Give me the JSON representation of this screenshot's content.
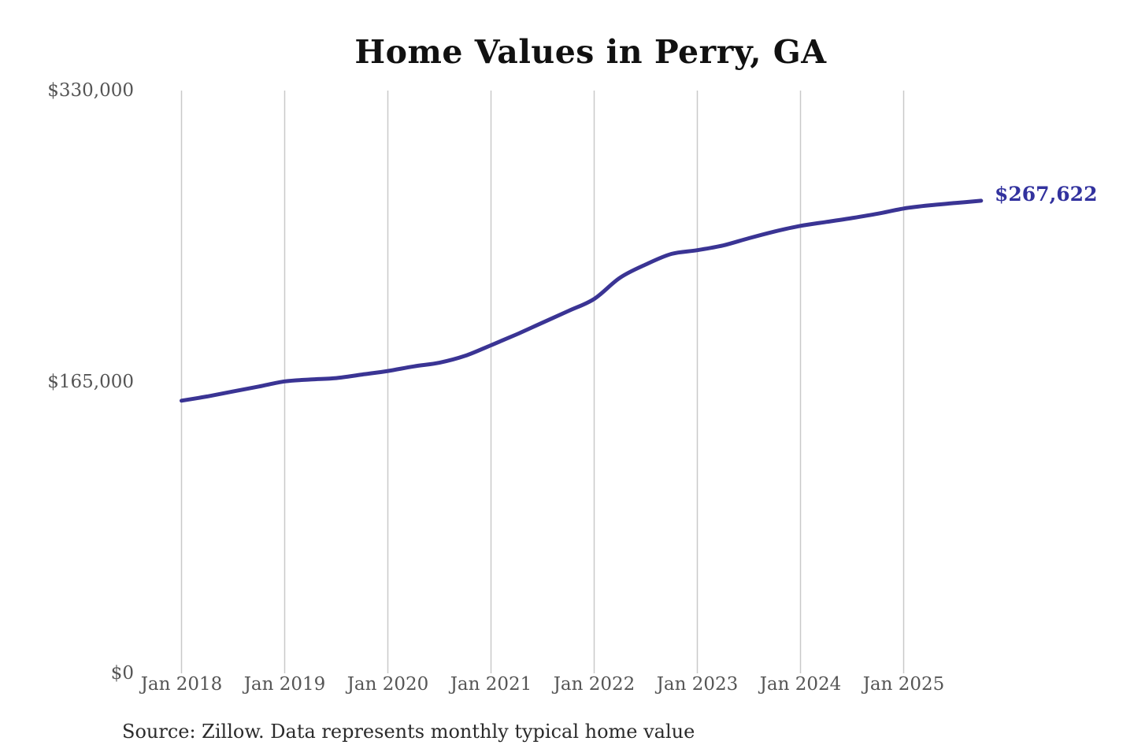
{
  "chart": {
    "title": "Home Values in Perry, GA",
    "end_label": "$267,622",
    "source": "Source: Zillow. Data represents monthly typical home value",
    "colors": {
      "line": "#3a3494",
      "annotation": "#32329e",
      "gridline": "#c9c9c9",
      "tick_text": "#555555",
      "title_text": "#111111",
      "source_text": "#2b2b2b",
      "background": "#ffffff"
    }
  },
  "chart_data": {
    "type": "line",
    "title": "Home Values in Perry, GA",
    "xlabel": "",
    "ylabel": "",
    "ylim": [
      0,
      330000
    ],
    "grid": "vertical-only",
    "legend": "none",
    "end_annotation": "$267,622",
    "yticks": [
      {
        "value": 0,
        "label": "$0"
      },
      {
        "value": 165000,
        "label": "$165,000"
      },
      {
        "value": 330000,
        "label": "$330,000"
      }
    ],
    "xticks": [
      {
        "month": "2018-01",
        "label": "Jan 2018"
      },
      {
        "month": "2019-01",
        "label": "Jan 2019"
      },
      {
        "month": "2020-01",
        "label": "Jan 2020"
      },
      {
        "month": "2021-01",
        "label": "Jan 2021"
      },
      {
        "month": "2022-01",
        "label": "Jan 2022"
      },
      {
        "month": "2023-01",
        "label": "Jan 2023"
      },
      {
        "month": "2024-01",
        "label": "Jan 2024"
      },
      {
        "month": "2025-01",
        "label": "Jan 2025"
      }
    ],
    "series": [
      {
        "name": "Monthly typical home value",
        "points": [
          [
            "2018-01",
            154400
          ],
          [
            "2018-04",
            156800
          ],
          [
            "2018-07",
            159600
          ],
          [
            "2018-10",
            162400
          ],
          [
            "2019-01",
            165300
          ],
          [
            "2019-04",
            166400
          ],
          [
            "2019-07",
            167200
          ],
          [
            "2019-10",
            169200
          ],
          [
            "2020-01",
            171200
          ],
          [
            "2020-04",
            173800
          ],
          [
            "2020-07",
            175900
          ],
          [
            "2020-10",
            179800
          ],
          [
            "2021-01",
            185800
          ],
          [
            "2021-04",
            192000
          ],
          [
            "2021-07",
            198600
          ],
          [
            "2021-10",
            205200
          ],
          [
            "2022-01",
            212000
          ],
          [
            "2022-04",
            224000
          ],
          [
            "2022-07",
            231500
          ],
          [
            "2022-10",
            237500
          ],
          [
            "2023-01",
            239600
          ],
          [
            "2023-04",
            242300
          ],
          [
            "2023-07",
            246400
          ],
          [
            "2023-10",
            250200
          ],
          [
            "2024-01",
            253400
          ],
          [
            "2024-04",
            255600
          ],
          [
            "2024-07",
            257800
          ],
          [
            "2024-10",
            260300
          ],
          [
            "2025-01",
            263200
          ],
          [
            "2025-04",
            265000
          ],
          [
            "2025-07",
            266300
          ],
          [
            "2025-10",
            267622
          ]
        ]
      }
    ]
  }
}
